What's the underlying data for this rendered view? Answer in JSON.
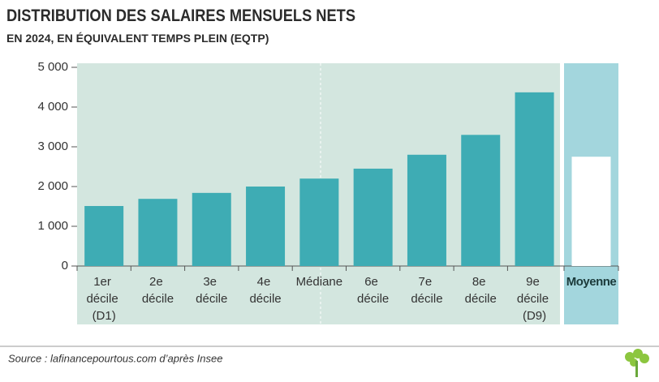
{
  "chart_data": {
    "type": "bar",
    "title": "DISTRIBUTION DES SALAIRES MENSUELS NETS",
    "subtitle": "EN 2024, EN ÉQUIVALENT TEMPS PLEIN (EQTP)",
    "source": "Source : lafinancepourtous.com d’après Insee",
    "categories": [
      "1er décile (D1)",
      "2e décile",
      "3e décile",
      "4e décile",
      "Médiane",
      "6e décile",
      "7e décile",
      "8e décile",
      "9e décile (D9)",
      "Moyenne"
    ],
    "values": [
      1510,
      1690,
      1840,
      2000,
      2200,
      2450,
      2800,
      3300,
      4370,
      2750
    ],
    "colors": [
      "#3eacb4",
      "#3eacb4",
      "#3eacb4",
      "#3eacb4",
      "#3eacb4",
      "#3eacb4",
      "#3eacb4",
      "#3eacb4",
      "#3eacb4",
      "#ffffff"
    ],
    "ylim": [
      0,
      5000
    ],
    "yticks": [
      0,
      {
        "value": 1000,
        "label": "1 000"
      },
      {
        "value": 2000,
        "label": "2 000"
      },
      {
        "value": 3000,
        "label": "3 000"
      },
      {
        "value": 4000,
        "label": "4 000"
      },
      {
        "value": 5000,
        "label": "5 000"
      }
    ]
  }
}
